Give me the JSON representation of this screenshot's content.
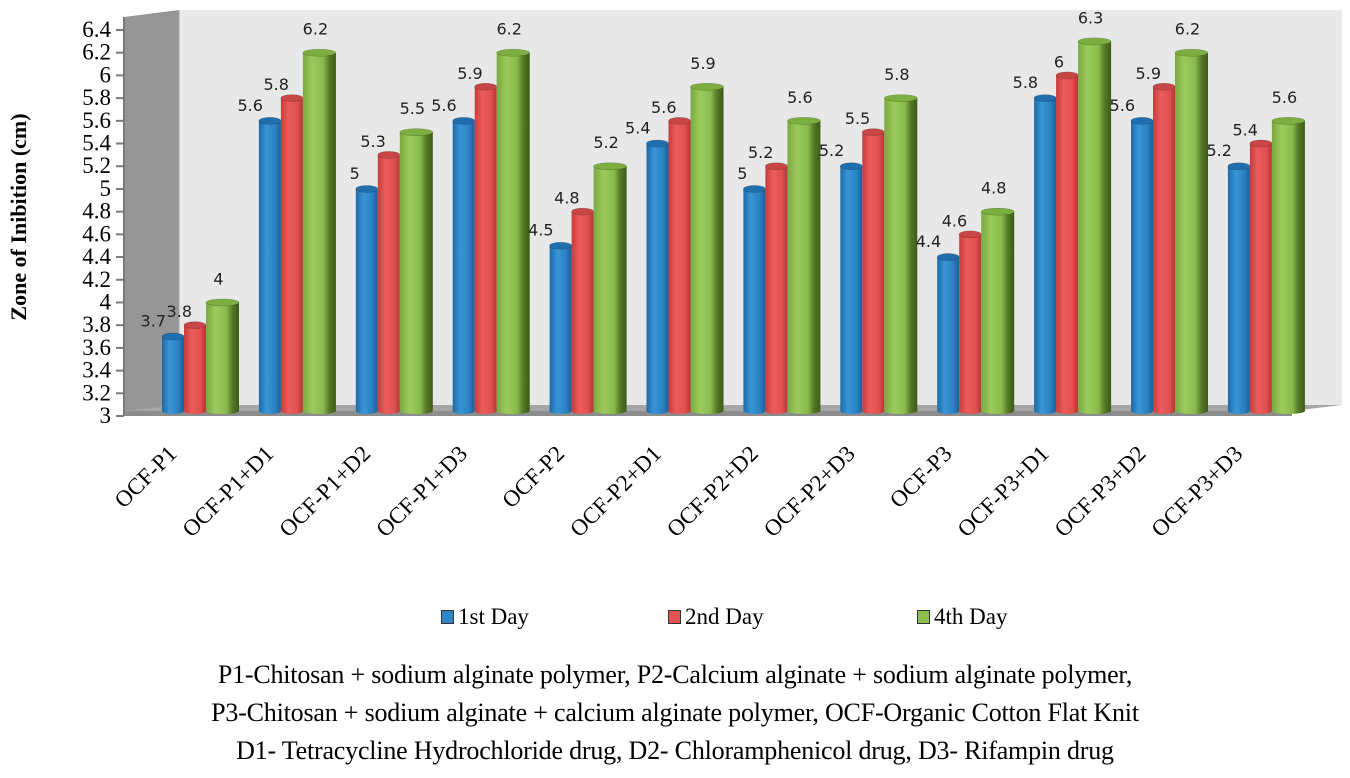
{
  "chart_data": {
    "type": "bar",
    "style": "3d-cylinder",
    "title": "",
    "xlabel": "",
    "ylabel": "Zone of Inibition (cm)",
    "ylim": [
      3,
      6.4
    ],
    "yticks": [
      "3",
      "3.2",
      "3.4",
      "3.6",
      "3.8",
      "4",
      "4.2",
      "4.4",
      "4.6",
      "4.8",
      "5",
      "5.2",
      "5.4",
      "5.6",
      "5.8",
      "6",
      "6.2",
      "6.4"
    ],
    "grid": false,
    "legend_position": "bottom",
    "categories": [
      "OCF-P1",
      "OCF-P1+D1",
      "OCF-P1+D2",
      "OCF-P1+D3",
      "OCF-P2",
      "OCF-P2+D1",
      "OCF-P2+D2",
      "OCF-P2+D3",
      "OCF-P3",
      "OCF-P3+D1",
      "OCF-P3+D2",
      "OCF-P3+D3"
    ],
    "series": [
      {
        "name": "1st Day",
        "color": "#2e86c8",
        "values": [
          3.7,
          5.6,
          5,
          5.6,
          4.5,
          5.4,
          5,
          5.2,
          4.4,
          5.8,
          5.6,
          5.2
        ]
      },
      {
        "name": "2nd Day",
        "color": "#e45454",
        "values": [
          3.8,
          5.8,
          5.3,
          5.9,
          4.8,
          5.6,
          5.2,
          5.5,
          4.6,
          6,
          5.9,
          5.4
        ]
      },
      {
        "name": "4th Day",
        "color": "#8cbf50",
        "values": [
          4,
          6.2,
          5.5,
          6.2,
          5.2,
          5.9,
          5.6,
          5.8,
          4.8,
          6.3,
          6.2,
          5.6
        ]
      }
    ],
    "data_labels": [
      [
        "3.7",
        "5.6",
        "5",
        "5.6",
        "4.5",
        "5.4",
        "5",
        "5.2",
        "4.4",
        "5.8",
        "5.6",
        "5.2"
      ],
      [
        "3.8",
        "5.8",
        "5.3",
        "5.9",
        "4.8",
        "5.6",
        "5.2",
        "5.5",
        "4.6",
        "6",
        "5.9",
        "5.4"
      ],
      [
        "4",
        "6.2",
        "5.5",
        "6.2",
        "5.2",
        "5.9",
        "5.6",
        "5.8",
        "4.8",
        "6.3",
        "6.2",
        "5.6"
      ]
    ]
  },
  "legend": [
    {
      "label": "1st Day",
      "color": "#2e86c8"
    },
    {
      "label": "2nd Day",
      "color": "#e45454"
    },
    {
      "label": "4th Day",
      "color": "#8cbf50"
    }
  ],
  "caption": {
    "line1": "P1-Chitosan + sodium alginate polymer, P2-Calcium alginate + sodium alginate polymer,",
    "line2": "P3-Chitosan + sodium alginate + calcium alginate polymer, OCF-Organic Cotton Flat Knit",
    "line3": "D1- Tetracycline Hydrochloride drug, D2- Chloramphenicol drug, D3- Rifampin drug"
  }
}
